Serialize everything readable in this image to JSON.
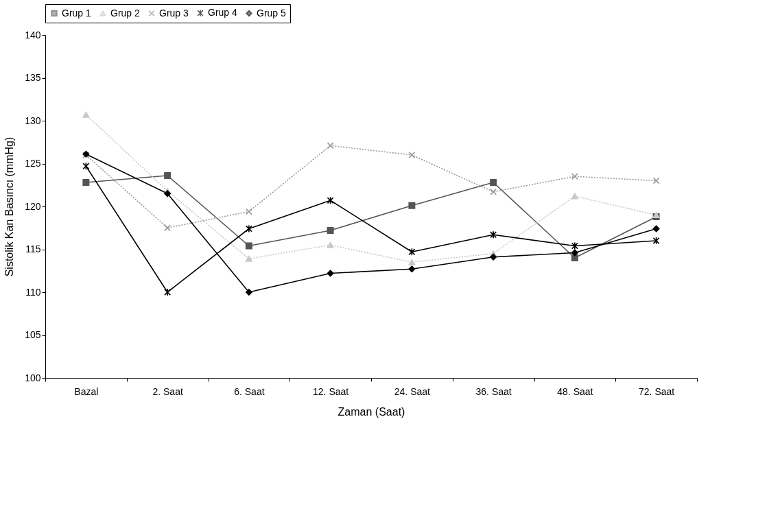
{
  "chart_data": {
    "type": "line",
    "xlabel": "Zaman (Saat)",
    "ylabel": "Sistolik Kan Basıncı (mmHg)",
    "categories": [
      "Bazal",
      "2. Saat",
      "6. Saat",
      "12. Saat",
      "24. Saat",
      "36. Saat",
      "48. Saat",
      "72. Saat"
    ],
    "series": [
      {
        "name": "Grup 1",
        "color": "#555555",
        "marker": "square",
        "line_style": "solid",
        "values": [
          122.8,
          123.6,
          115.4,
          117.2,
          120.1,
          122.8,
          114.0,
          118.8
        ]
      },
      {
        "name": "Grup 2",
        "color": "#c8c8c8",
        "marker": "triangle",
        "line_style": "dotted",
        "values": [
          130.7,
          121.8,
          113.9,
          115.5,
          113.5,
          114.5,
          121.2,
          119.0
        ]
      },
      {
        "name": "Grup 3",
        "color": "#999999",
        "marker": "cross",
        "line_style": "dotted",
        "values": [
          126.0,
          117.5,
          119.4,
          127.1,
          126.0,
          121.7,
          123.5,
          123.0
        ]
      },
      {
        "name": "Grup 4",
        "color": "#000000",
        "marker": "cross",
        "line_style": "solid",
        "values": [
          124.7,
          110.0,
          117.4,
          120.7,
          114.7,
          116.7,
          115.4,
          116.0
        ]
      },
      {
        "name": "Grup 5",
        "color": "#000000",
        "marker": "diamond",
        "line_style": "solid",
        "values": [
          126.1,
          121.5,
          110.0,
          112.2,
          112.7,
          114.1,
          114.6,
          117.4
        ]
      }
    ],
    "ylim": [
      100,
      140
    ],
    "yticks": [
      100,
      105,
      110,
      115,
      120,
      125,
      130,
      135,
      140
    ],
    "grid": false,
    "legend": "top"
  }
}
